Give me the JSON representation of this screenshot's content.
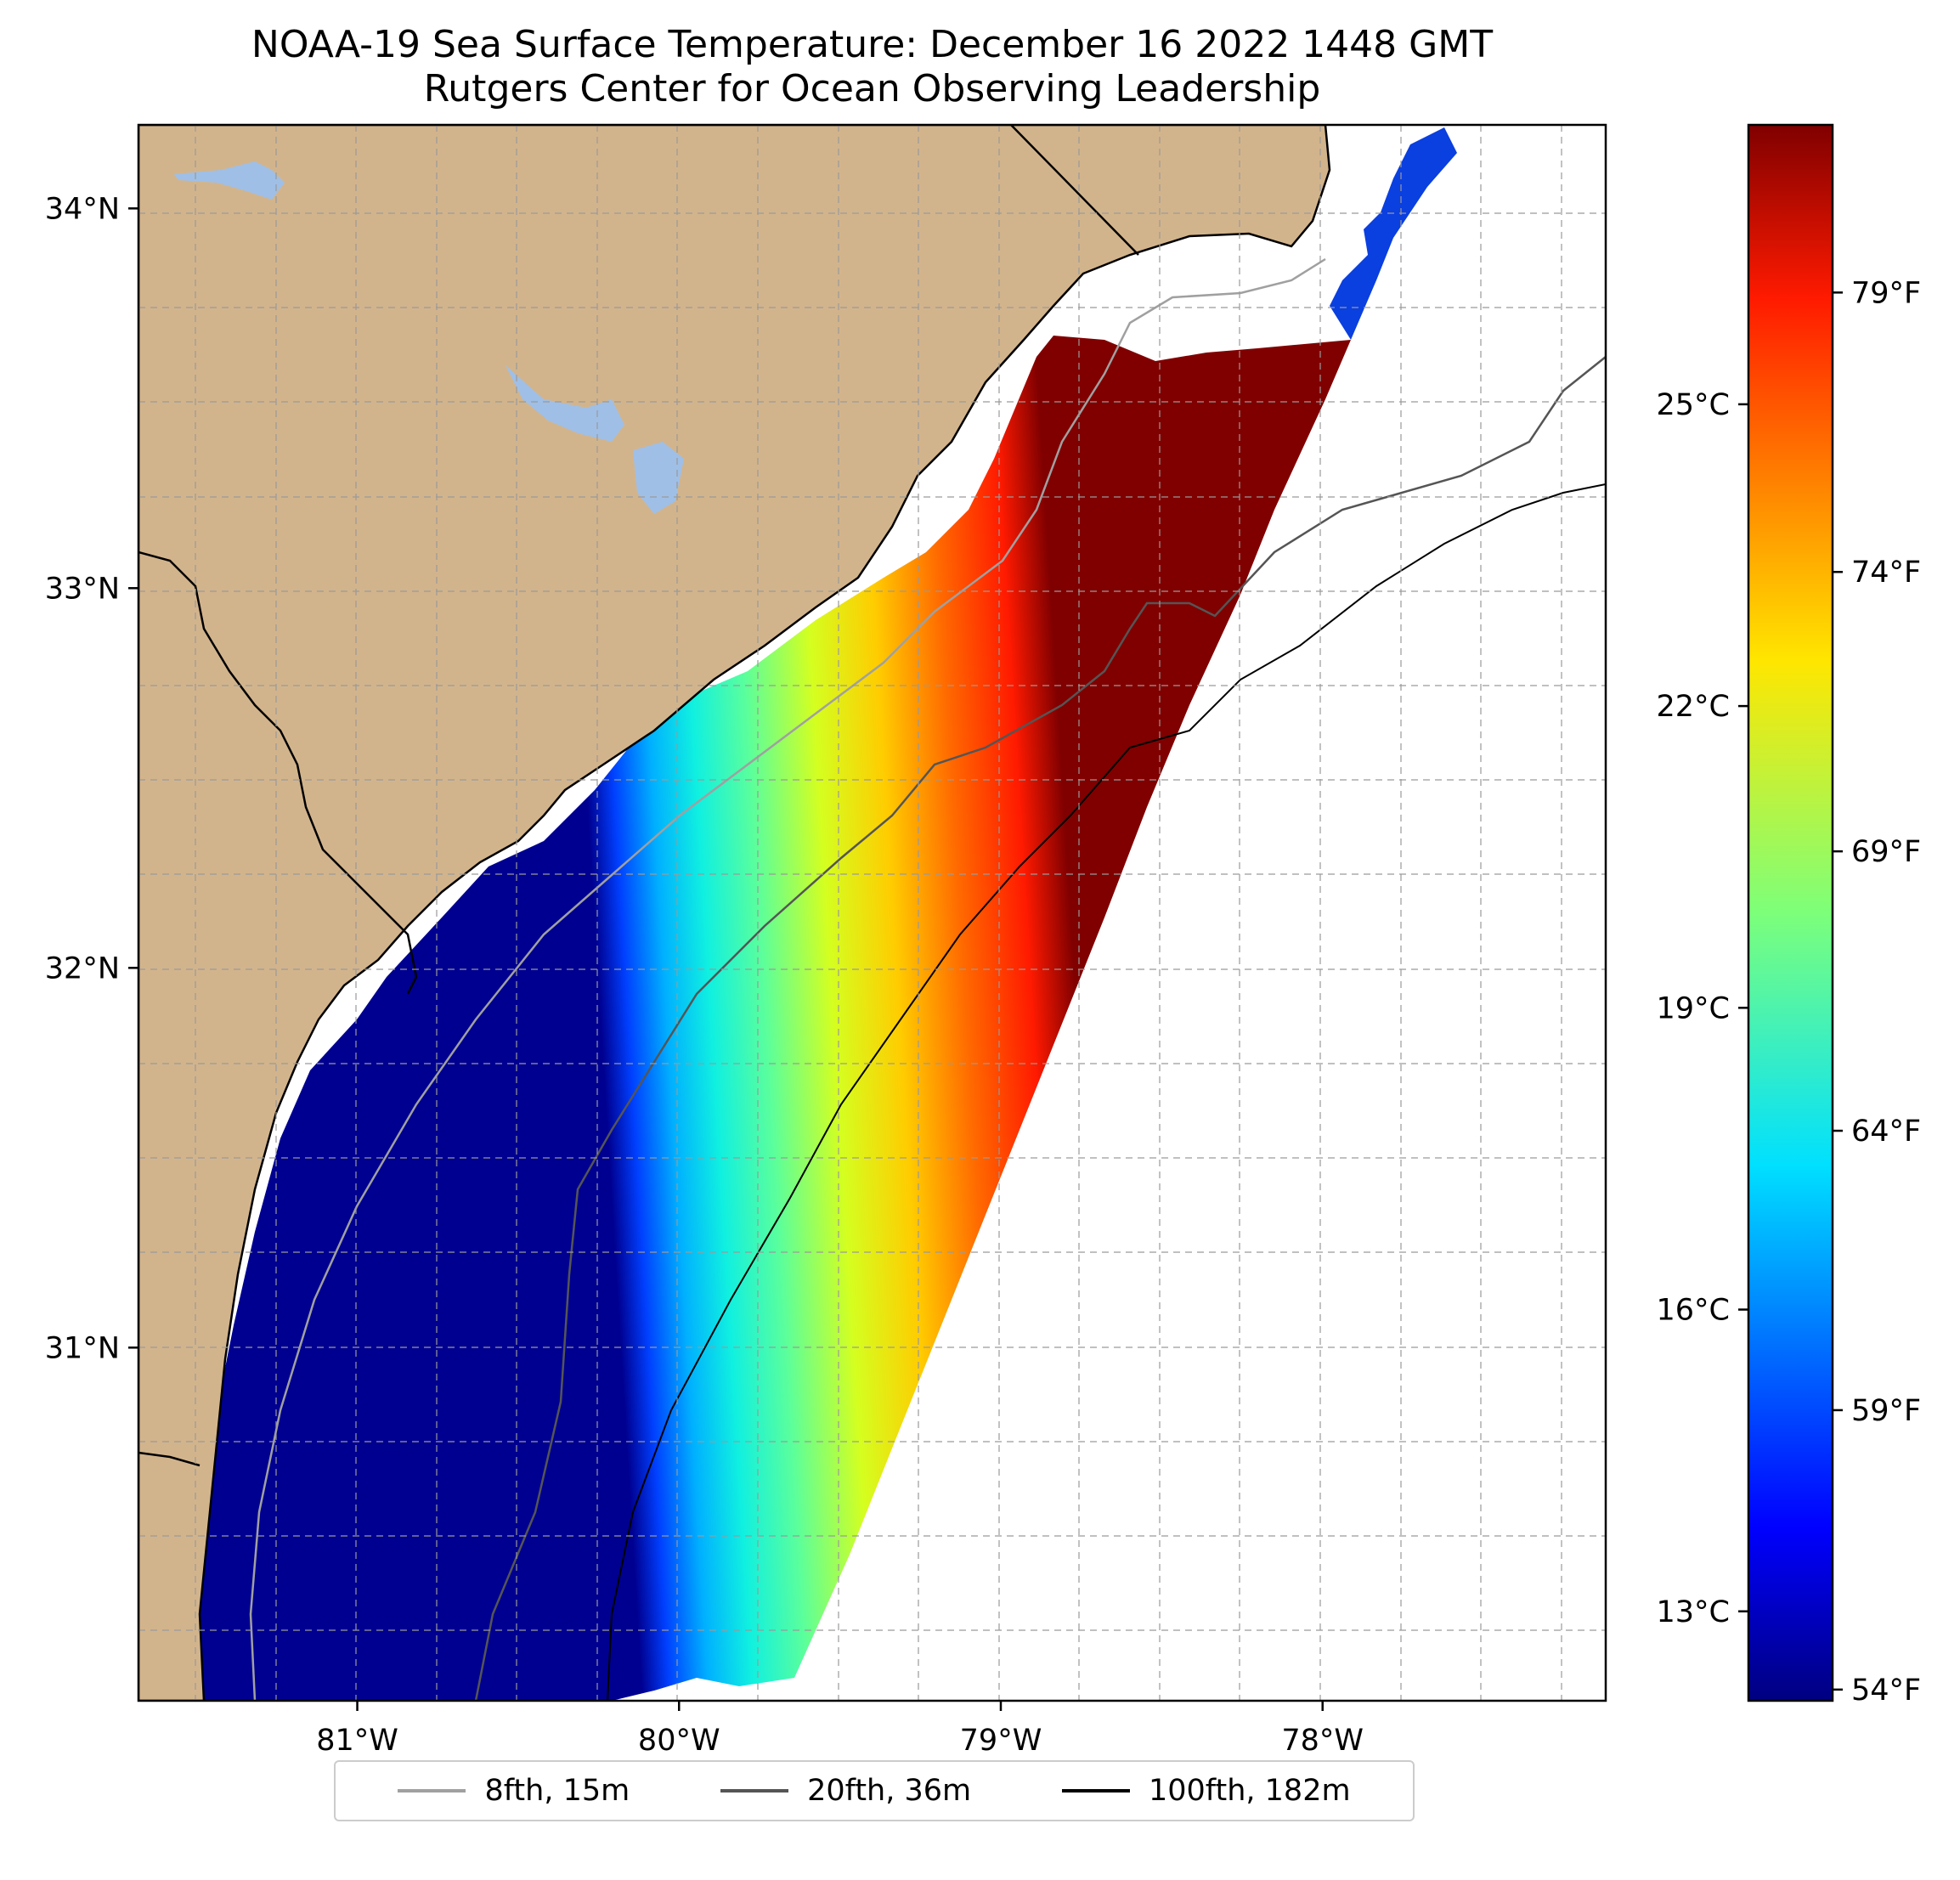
{
  "chart_data": {
    "type": "heatmap",
    "title": "NOAA-19 Sea Surface Temperature: December 16 2022 1448 GMT",
    "subtitle": "Rutgers Center for Ocean Observing Leadership",
    "x_axis": {
      "range": [
        -81.68,
        -77.12
      ],
      "ticks": [
        -81,
        -80,
        -79,
        -78
      ],
      "tick_labels": [
        "81°W",
        "80°W",
        "79°W",
        "78°W"
      ]
    },
    "y_axis": {
      "range": [
        30.07,
        34.22
      ],
      "ticks": [
        31,
        32,
        33,
        34
      ],
      "tick_labels": [
        "31°N",
        "32°N",
        "33°N",
        "34°N"
      ]
    },
    "grid": true,
    "colorbar": {
      "colormap": "jet",
      "range_f": [
        53.8,
        82.0
      ],
      "celsius_ticks": [
        13,
        16,
        19,
        22,
        25
      ],
      "celsius_labels": [
        "13°C",
        "16°C",
        "19°C",
        "22°C",
        "25°C"
      ],
      "fahrenheit_ticks": [
        54,
        59,
        64,
        69,
        74,
        79
      ],
      "fahrenheit_labels": [
        "54°F",
        "59°F",
        "64°F",
        "69°F",
        "74°F",
        "79°F"
      ]
    },
    "legend": {
      "placement": "bottom-center",
      "entries": [
        {
          "label": "8fth, 15m",
          "color": "#a0a0a0"
        },
        {
          "label": "20fth, 36m",
          "color": "#555555"
        },
        {
          "label": "100fth, 182m",
          "color": "#000000"
        }
      ]
    },
    "colors": {
      "land": "#d2b48c",
      "lakes": "#9fbfe6",
      "no_data": "#ffffff"
    }
  }
}
